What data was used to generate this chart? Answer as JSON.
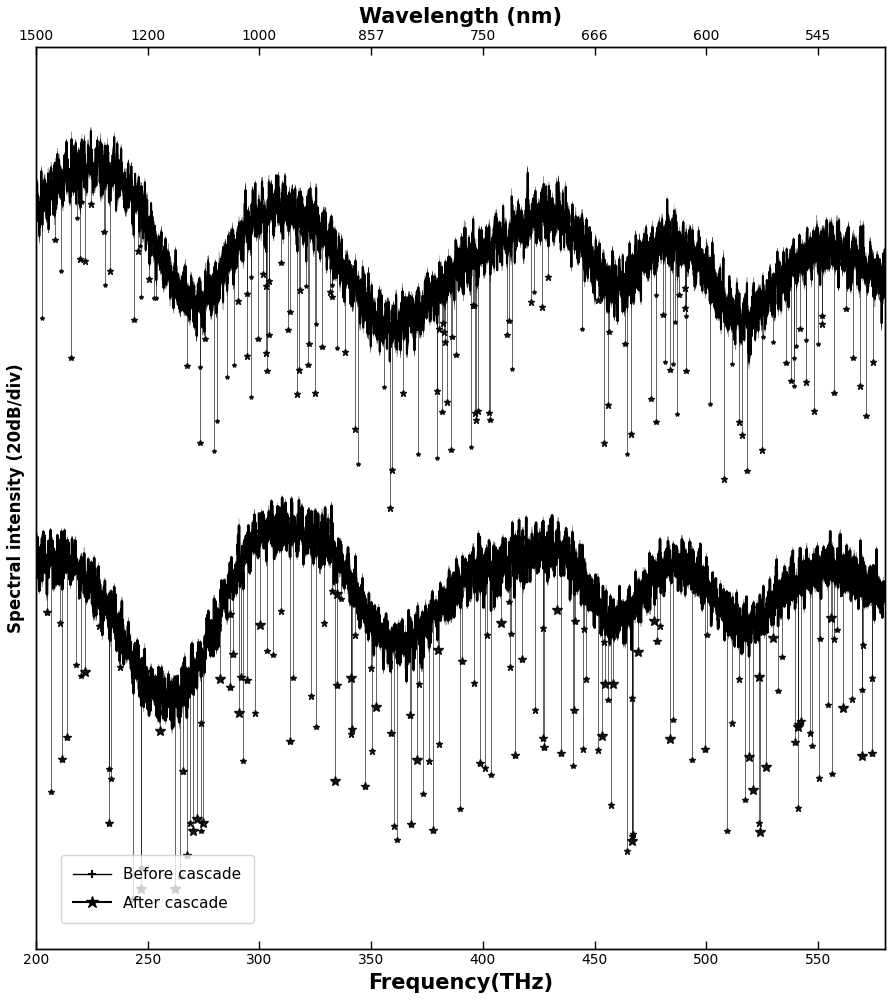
{
  "title_top": "Wavelength (nm)",
  "xlabel": "Frequency(THz)",
  "ylabel": "Spectral intensity (20dB/div)",
  "freq_min": 200,
  "freq_max": 580,
  "top_axis_wavelengths": [
    "1500",
    "1200",
    "1000",
    "857",
    "750",
    "666",
    "600",
    "545"
  ],
  "top_axis_tick_freqs": [
    200,
    250,
    300,
    350,
    400,
    450,
    500,
    550
  ],
  "bottom_axis_ticks": [
    200,
    250,
    300,
    350,
    400,
    450,
    500,
    550
  ],
  "legend_labels": [
    "Before cascade",
    "After cascade"
  ],
  "line_color": "#000000",
  "background_color": "#ffffff",
  "seed": 42
}
